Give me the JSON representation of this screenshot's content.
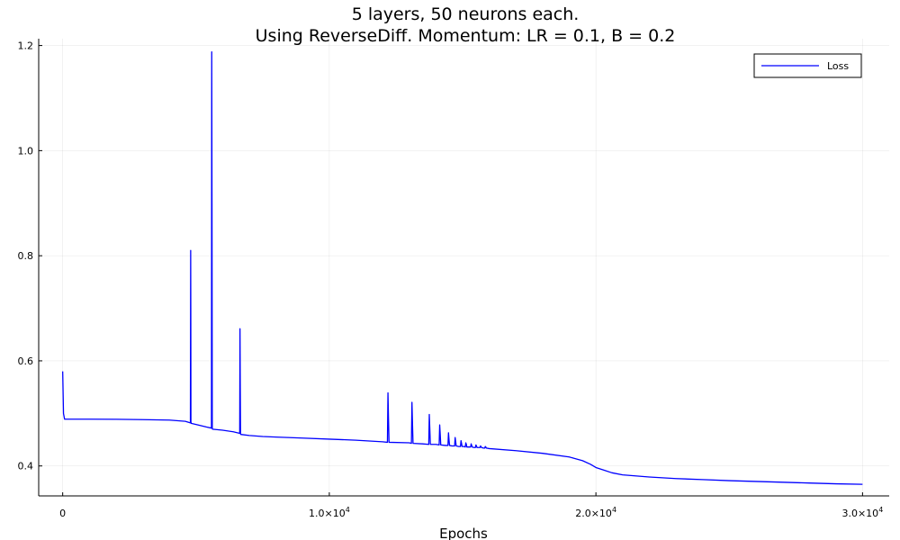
{
  "chart_data": {
    "type": "line",
    "title": [
      "5 layers, 50 neurons each.",
      "Using ReverseDiff. Momentum: LR = 0.1, B = 0.2"
    ],
    "xlabel": "Epochs",
    "ylabel": "",
    "xlim": [
      -900,
      31000
    ],
    "ylim": [
      0.343,
      1.213
    ],
    "grid": true,
    "legend_position": "top-right",
    "x_ticks": [
      {
        "value": 0,
        "mantissa": "0",
        "exp": ""
      },
      {
        "value": 10000,
        "mantissa": "1.0×10",
        "exp": "4"
      },
      {
        "value": 20000,
        "mantissa": "2.0×10",
        "exp": "4"
      },
      {
        "value": 30000,
        "mantissa": "3.0×10",
        "exp": "4"
      }
    ],
    "y_ticks": [
      {
        "value": 0.4,
        "label": "0.4"
      },
      {
        "value": 0.6,
        "label": "0.6"
      },
      {
        "value": 0.8,
        "label": "0.8"
      },
      {
        "value": 1.0,
        "label": "1.0"
      },
      {
        "value": 1.2,
        "label": "1.2"
      }
    ],
    "series": [
      {
        "name": "Loss",
        "color": "#0000ff",
        "x": [
          0,
          30,
          70,
          1000,
          2000,
          3000,
          4000,
          4600,
          4790,
          4800,
          4805,
          4810,
          4820,
          5000,
          5400,
          5580,
          5590,
          5600,
          5610,
          5620,
          6000,
          6400,
          6640,
          6650,
          6660,
          6670,
          6680,
          7000,
          7500,
          8000,
          9000,
          10000,
          11000,
          12000,
          12180,
          12200,
          12220,
          12240,
          13000,
          13080,
          13100,
          13120,
          13140,
          13500,
          13730,
          13750,
          13770,
          13790,
          14000,
          14120,
          14140,
          14160,
          14180,
          14350,
          14450,
          14470,
          14490,
          14510,
          14600,
          14700,
          14720,
          14740,
          14760,
          14850,
          14920,
          14940,
          14960,
          14980,
          15050,
          15100,
          15120,
          15140,
          15160,
          15250,
          15300,
          15320,
          15340,
          15360,
          15430,
          15480,
          15500,
          15520,
          15540,
          15600,
          15650,
          15670,
          15690,
          15710,
          15780,
          15830,
          15850,
          15870,
          15890,
          16000,
          17000,
          18000,
          19000,
          19500,
          19800,
          20000,
          20300,
          20600,
          21000,
          22000,
          23000,
          24000,
          25000,
          26000,
          27000,
          28000,
          29000,
          30000
        ],
        "y": [
          0.58,
          0.5,
          0.489,
          0.489,
          0.4888,
          0.4882,
          0.4873,
          0.485,
          0.482,
          0.81,
          0.7,
          0.484,
          0.481,
          0.479,
          0.474,
          0.472,
          1.188,
          0.9,
          0.472,
          0.47,
          0.468,
          0.465,
          0.462,
          0.661,
          0.55,
          0.461,
          0.46,
          0.458,
          0.456,
          0.455,
          0.453,
          0.451,
          0.449,
          0.446,
          0.445,
          0.539,
          0.49,
          0.445,
          0.444,
          0.443,
          0.521,
          0.48,
          0.443,
          0.442,
          0.441,
          0.498,
          0.47,
          0.441,
          0.441,
          0.44,
          0.478,
          0.46,
          0.44,
          0.439,
          0.439,
          0.463,
          0.45,
          0.439,
          0.438,
          0.438,
          0.454,
          0.446,
          0.438,
          0.437,
          0.437,
          0.448,
          0.443,
          0.437,
          0.437,
          0.436,
          0.444,
          0.441,
          0.436,
          0.436,
          0.436,
          0.442,
          0.439,
          0.436,
          0.435,
          0.435,
          0.44,
          0.438,
          0.435,
          0.435,
          0.435,
          0.438,
          0.437,
          0.435,
          0.434,
          0.434,
          0.437,
          0.436,
          0.434,
          0.433,
          0.429,
          0.424,
          0.417,
          0.41,
          0.403,
          0.397,
          0.392,
          0.387,
          0.383,
          0.379,
          0.376,
          0.374,
          0.372,
          0.3705,
          0.369,
          0.3675,
          0.366,
          0.365
        ]
      }
    ]
  }
}
